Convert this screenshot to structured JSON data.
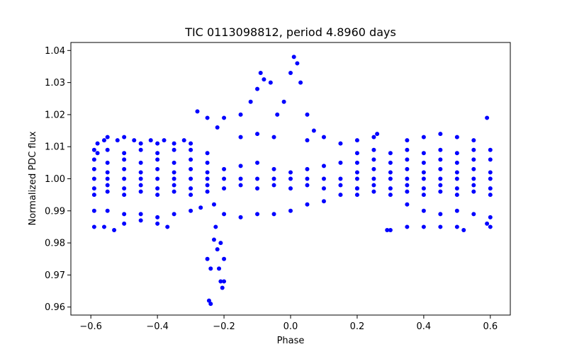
{
  "chart_data": {
    "type": "scatter",
    "title": "TIC 0113098812, period 4.8960 days",
    "xlabel": "Phase",
    "ylabel": "Normalized PDC flux",
    "xlim": [
      -0.66,
      0.66
    ],
    "ylim": [
      0.9575,
      1.0425
    ],
    "xticks": [
      -0.6,
      -0.4,
      -0.2,
      0.0,
      0.2,
      0.4,
      0.6
    ],
    "xtick_labels": [
      "−0.6",
      "−0.4",
      "−0.2",
      "0.0",
      "0.2",
      "0.4",
      "0.6"
    ],
    "yticks": [
      0.96,
      0.97,
      0.98,
      0.99,
      1.0,
      1.01,
      1.02,
      1.03,
      1.04
    ],
    "ytick_labels": [
      "0.96",
      "0.97",
      "0.98",
      "0.99",
      "1.00",
      "1.01",
      "1.02",
      "1.03",
      "1.04"
    ],
    "grid": false,
    "legend": false,
    "color": "#0000ff",
    "series": [
      {
        "points": [
          [
            -0.59,
            1.009
          ],
          [
            -0.58,
            1.011
          ],
          [
            -0.56,
            1.012
          ],
          [
            -0.55,
            1.013
          ],
          [
            -0.52,
            1.012
          ],
          [
            -0.5,
            1.013
          ],
          [
            -0.47,
            1.012
          ],
          [
            -0.45,
            1.011
          ],
          [
            -0.42,
            1.012
          ],
          [
            -0.4,
            1.011
          ],
          [
            -0.38,
            1.012
          ],
          [
            -0.35,
            1.011
          ],
          [
            -0.32,
            1.012
          ],
          [
            -0.3,
            1.011
          ],
          [
            -0.58,
            1.008
          ],
          [
            -0.55,
            1.009
          ],
          [
            -0.5,
            1.008
          ],
          [
            -0.45,
            1.009
          ],
          [
            -0.4,
            1.008
          ],
          [
            -0.35,
            1.009
          ],
          [
            -0.3,
            1.009
          ],
          [
            -0.25,
            1.008
          ],
          [
            -0.59,
            1.006
          ],
          [
            -0.55,
            1.005
          ],
          [
            -0.5,
            1.006
          ],
          [
            -0.45,
            1.005
          ],
          [
            -0.4,
            1.006
          ],
          [
            -0.35,
            1.005
          ],
          [
            -0.3,
            1.006
          ],
          [
            -0.25,
            1.005
          ],
          [
            -0.59,
            1.003
          ],
          [
            -0.55,
            1.002
          ],
          [
            -0.5,
            1.003
          ],
          [
            -0.45,
            1.002
          ],
          [
            -0.4,
            1.003
          ],
          [
            -0.35,
            1.002
          ],
          [
            -0.3,
            1.003
          ],
          [
            -0.25,
            1.002
          ],
          [
            -0.59,
            1.0
          ],
          [
            -0.55,
            1.0
          ],
          [
            -0.5,
            1.0
          ],
          [
            -0.45,
            1.0
          ],
          [
            -0.4,
            1.0
          ],
          [
            -0.35,
            1.0
          ],
          [
            -0.3,
            1.0
          ],
          [
            -0.25,
            1.0
          ],
          [
            -0.59,
            0.997
          ],
          [
            -0.55,
            0.998
          ],
          [
            -0.5,
            0.997
          ],
          [
            -0.45,
            0.998
          ],
          [
            -0.4,
            0.997
          ],
          [
            -0.35,
            0.998
          ],
          [
            -0.3,
            0.997
          ],
          [
            -0.25,
            0.998
          ],
          [
            -0.59,
            0.995
          ],
          [
            -0.55,
            0.996
          ],
          [
            -0.5,
            0.995
          ],
          [
            -0.45,
            0.996
          ],
          [
            -0.4,
            0.995
          ],
          [
            -0.35,
            0.996
          ],
          [
            -0.3,
            0.995
          ],
          [
            -0.25,
            0.996
          ],
          [
            -0.59,
            0.99
          ],
          [
            -0.55,
            0.99
          ],
          [
            -0.5,
            0.989
          ],
          [
            -0.45,
            0.989
          ],
          [
            -0.4,
            0.988
          ],
          [
            -0.35,
            0.989
          ],
          [
            -0.3,
            0.99
          ],
          [
            -0.27,
            0.991
          ],
          [
            -0.59,
            0.985
          ],
          [
            -0.56,
            0.985
          ],
          [
            -0.53,
            0.984
          ],
          [
            -0.5,
            0.986
          ],
          [
            -0.45,
            0.987
          ],
          [
            -0.4,
            0.986
          ],
          [
            -0.37,
            0.985
          ],
          [
            -0.28,
            1.021
          ],
          [
            -0.25,
            1.019
          ],
          [
            -0.22,
            1.016
          ],
          [
            -0.2,
            1.019
          ],
          [
            -0.15,
            1.02
          ],
          [
            -0.12,
            1.024
          ],
          [
            -0.1,
            1.028
          ],
          [
            -0.08,
            1.031
          ],
          [
            -0.09,
            1.033
          ],
          [
            -0.06,
            1.03
          ],
          [
            -0.04,
            1.02
          ],
          [
            -0.02,
            1.024
          ],
          [
            0.0,
            1.033
          ],
          [
            0.01,
            1.038
          ],
          [
            0.02,
            1.036
          ],
          [
            0.03,
            1.03
          ],
          [
            0.05,
            1.02
          ],
          [
            0.07,
            1.015
          ],
          [
            -0.23,
            0.992
          ],
          [
            -0.225,
            0.985
          ],
          [
            -0.22,
            0.978
          ],
          [
            -0.215,
            0.972
          ],
          [
            -0.21,
            0.968
          ],
          [
            -0.205,
            0.966
          ],
          [
            -0.2,
            0.968
          ],
          [
            -0.25,
            0.975
          ],
          [
            -0.24,
            0.972
          ],
          [
            -0.245,
            0.962
          ],
          [
            -0.24,
            0.961
          ],
          [
            -0.23,
            0.981
          ],
          [
            -0.21,
            0.98
          ],
          [
            -0.2,
            0.975
          ],
          [
            -0.2,
            1.003
          ],
          [
            -0.15,
            1.004
          ],
          [
            -0.1,
            1.005
          ],
          [
            -0.05,
            1.003
          ],
          [
            0.0,
            1.002
          ],
          [
            0.05,
            1.003
          ],
          [
            0.1,
            1.004
          ],
          [
            0.15,
            1.005
          ],
          [
            -0.2,
            1.0
          ],
          [
            -0.15,
            1.0
          ],
          [
            -0.1,
            1.0
          ],
          [
            -0.05,
            1.0
          ],
          [
            0.0,
            1.0
          ],
          [
            0.05,
            1.0
          ],
          [
            0.1,
            1.0
          ],
          [
            0.15,
            1.0
          ],
          [
            -0.2,
            0.997
          ],
          [
            -0.15,
            0.998
          ],
          [
            -0.1,
            0.997
          ],
          [
            -0.05,
            0.998
          ],
          [
            0.0,
            0.997
          ],
          [
            0.05,
            0.998
          ],
          [
            0.1,
            0.997
          ],
          [
            0.15,
            0.998
          ],
          [
            -0.2,
            0.989
          ],
          [
            -0.15,
            0.988
          ],
          [
            -0.1,
            0.989
          ],
          [
            -0.05,
            0.989
          ],
          [
            0.0,
            0.99
          ],
          [
            0.05,
            0.992
          ],
          [
            0.1,
            0.993
          ],
          [
            0.15,
            0.995
          ],
          [
            0.2,
            0.997
          ],
          [
            -0.15,
            1.013
          ],
          [
            -0.1,
            1.014
          ],
          [
            -0.05,
            1.013
          ],
          [
            0.05,
            1.012
          ],
          [
            0.1,
            1.013
          ],
          [
            0.15,
            1.011
          ],
          [
            0.2,
            1.012
          ],
          [
            0.25,
            1.013
          ],
          [
            0.26,
            1.014
          ],
          [
            0.2,
            1.008
          ],
          [
            0.25,
            1.009
          ],
          [
            0.3,
            1.008
          ],
          [
            0.35,
            1.009
          ],
          [
            0.4,
            1.008
          ],
          [
            0.45,
            1.009
          ],
          [
            0.5,
            1.008
          ],
          [
            0.55,
            1.009
          ],
          [
            0.6,
            1.009
          ],
          [
            0.2,
            1.005
          ],
          [
            0.25,
            1.006
          ],
          [
            0.3,
            1.005
          ],
          [
            0.35,
            1.006
          ],
          [
            0.4,
            1.005
          ],
          [
            0.45,
            1.006
          ],
          [
            0.5,
            1.005
          ],
          [
            0.55,
            1.006
          ],
          [
            0.6,
            1.006
          ],
          [
            0.2,
            1.002
          ],
          [
            0.25,
            1.003
          ],
          [
            0.3,
            1.002
          ],
          [
            0.35,
            1.003
          ],
          [
            0.4,
            1.002
          ],
          [
            0.45,
            1.003
          ],
          [
            0.5,
            1.002
          ],
          [
            0.55,
            1.003
          ],
          [
            0.6,
            1.002
          ],
          [
            0.2,
            1.0
          ],
          [
            0.25,
            1.0
          ],
          [
            0.3,
            1.0
          ],
          [
            0.35,
            1.0
          ],
          [
            0.4,
            1.0
          ],
          [
            0.45,
            1.0
          ],
          [
            0.5,
            1.0
          ],
          [
            0.55,
            1.0
          ],
          [
            0.6,
            1.0
          ],
          [
            0.2,
            0.997
          ],
          [
            0.25,
            0.998
          ],
          [
            0.3,
            0.997
          ],
          [
            0.35,
            0.998
          ],
          [
            0.4,
            0.997
          ],
          [
            0.45,
            0.998
          ],
          [
            0.5,
            0.997
          ],
          [
            0.55,
            0.998
          ],
          [
            0.6,
            0.997
          ],
          [
            0.2,
            0.995
          ],
          [
            0.25,
            0.996
          ],
          [
            0.3,
            0.995
          ],
          [
            0.35,
            0.996
          ],
          [
            0.4,
            0.995
          ],
          [
            0.45,
            0.996
          ],
          [
            0.5,
            0.995
          ],
          [
            0.55,
            0.996
          ],
          [
            0.6,
            0.995
          ],
          [
            0.35,
            0.992
          ],
          [
            0.4,
            0.99
          ],
          [
            0.45,
            0.989
          ],
          [
            0.5,
            0.99
          ],
          [
            0.55,
            0.989
          ],
          [
            0.6,
            0.988
          ],
          [
            0.29,
            0.984
          ],
          [
            0.3,
            0.984
          ],
          [
            0.35,
            0.985
          ],
          [
            0.4,
            0.985
          ],
          [
            0.45,
            0.985
          ],
          [
            0.5,
            0.985
          ],
          [
            0.52,
            0.984
          ],
          [
            0.59,
            0.986
          ],
          [
            0.6,
            0.985
          ],
          [
            0.35,
            1.012
          ],
          [
            0.4,
            1.013
          ],
          [
            0.45,
            1.014
          ],
          [
            0.5,
            1.013
          ],
          [
            0.55,
            1.012
          ],
          [
            0.59,
            1.019
          ]
        ]
      }
    ]
  }
}
